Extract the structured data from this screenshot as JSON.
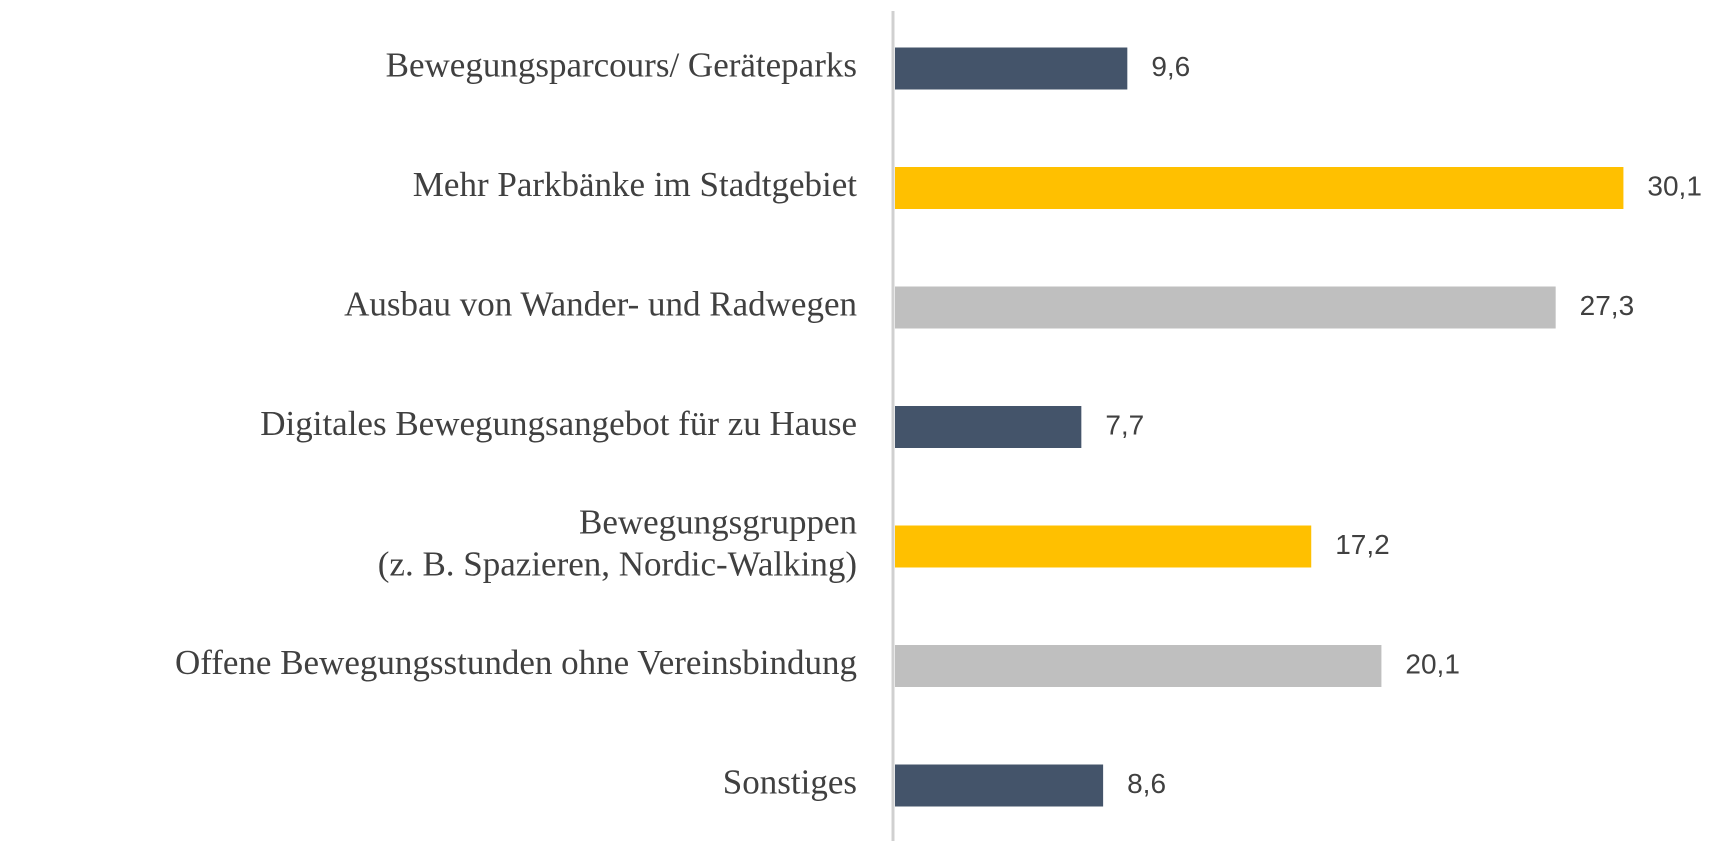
{
  "chart_data": {
    "type": "bar",
    "orientation": "horizontal",
    "categories": [
      "Bewegungsparcours/ Geräteparks",
      "Mehr Parkbänke im Stadtgebiet",
      "Ausbau von Wander- und Radwegen",
      "Digitales Bewegungsangebot für zu Hause",
      "Bewegungsgruppen\n(z. B. Spazieren, Nordic-Walking)",
      "Offene Bewegungsstunden ohne Vereinsbindung",
      "Sonstiges"
    ],
    "values": [
      9.6,
      30.1,
      27.3,
      7.7,
      17.2,
      20.1,
      8.6
    ],
    "value_labels": [
      "9,6",
      "30,1",
      "27,3",
      "7,7",
      "17,2",
      "20,1",
      "8,6"
    ],
    "colors": [
      "#44546a",
      "#ffc000",
      "#bfbfbf",
      "#44546a",
      "#ffc000",
      "#bfbfbf",
      "#44546a"
    ]
  }
}
